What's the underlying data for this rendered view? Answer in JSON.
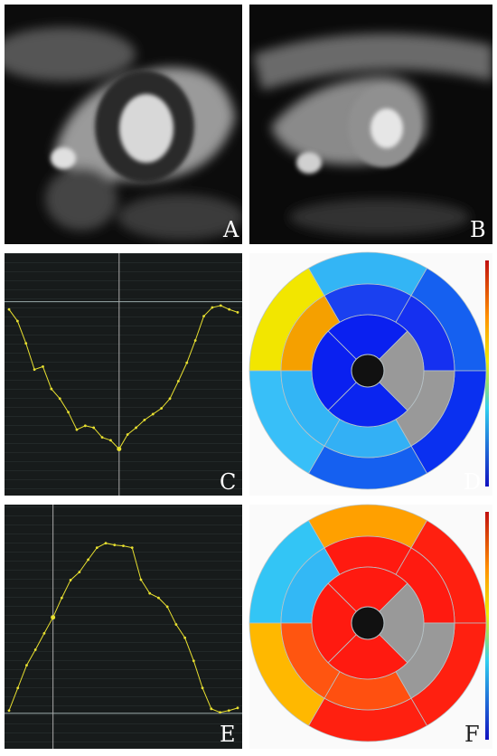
{
  "panels": [
    {
      "label": "A"
    },
    {
      "label": "B"
    },
    {
      "label": "C"
    },
    {
      "label": "D"
    },
    {
      "label": "E"
    },
    {
      "label": "F"
    }
  ],
  "chart_data": [
    {
      "type": "line",
      "color": "#e8e030",
      "ylim": [
        -20,
        5
      ],
      "values": [
        -0.8,
        -2,
        -4.3,
        -7,
        -6.7,
        -9,
        -10,
        -11.4,
        -13.2,
        -12.8,
        -13,
        -14,
        -14.3,
        -15.2,
        -13.7,
        -13,
        -12.2,
        -11.6,
        -11,
        -10,
        -8.2,
        -6.3,
        -4,
        -1.5,
        -0.6,
        -0.4,
        -0.8,
        -1.1
      ]
    },
    {
      "type": "bullseye",
      "outer": [
        "#f2e600",
        "#33b5f5",
        "#1560f0",
        "#0a30f0",
        "#1560f0",
        "#38bff8"
      ],
      "middle": [
        "#f5a000",
        "#1a40f0",
        "#1530f0",
        "#999999",
        "#33b0f5",
        "#33b5f5"
      ],
      "inner": [
        "#0a20f0",
        "#999999",
        "#0a25f0",
        "#0a20f0"
      ]
    },
    {
      "type": "line",
      "color": "#e8e030",
      "ylim": [
        -8,
        47
      ],
      "values": [
        0.6,
        5.7,
        10.8,
        14.3,
        18,
        21.6,
        26,
        30,
        31.8,
        34.6,
        37.3,
        38.3,
        37.9,
        37.7,
        37.3,
        30.1,
        27,
        26,
        24,
        20,
        17,
        11.8,
        5.7,
        1,
        0.2,
        0.6,
        1.2
      ]
    },
    {
      "type": "bullseye",
      "outer": [
        "#33c5f5",
        "#ffa000",
        "#ff2010",
        "#ff2010",
        "#ff2010",
        "#ffb800"
      ],
      "middle": [
        "#33b8f5",
        "#ff1a10",
        "#ff1a10",
        "#999999",
        "#ff5010",
        "#ff5510"
      ],
      "inner": [
        "#ff1a10",
        "#999999",
        "#ff1a10",
        "#ff1a10"
      ]
    }
  ]
}
